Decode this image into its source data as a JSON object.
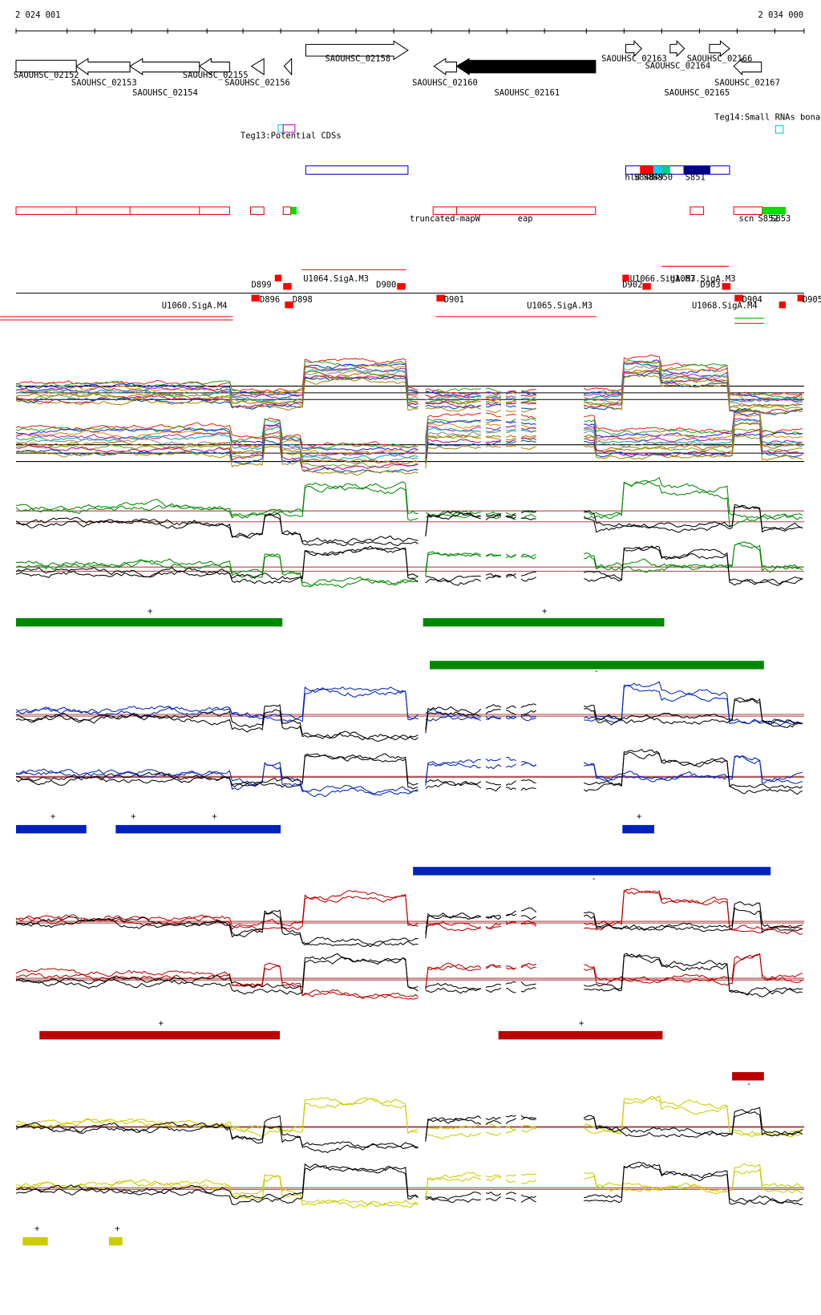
{
  "ruler": {
    "start": "2 024 001",
    "end": "2 034 000"
  },
  "genes": [
    "SAOUHSC_02152",
    "SAOUHSC_02153",
    "SAOUHSC_02154",
    "SAOUHSC_02155",
    "SAOUHSC_02156",
    "SAOUHSC_02158",
    "SAOUHSC_02160",
    "SAOUHSC_02161",
    "SAOUHSC_02163",
    "SAOUHSC_02164",
    "SAOUHSC_02166",
    "SAOUHSC_02165",
    "SAOUHSC_02167"
  ],
  "tracks": [
    "Teg13:Potential CDSs",
    "Teg14:Small RNAs bona"
  ],
  "features": [
    "hld",
    "S848",
    "S849",
    "S850",
    "S851",
    "truncated-mapW",
    "eap",
    "scn",
    "S852",
    "S853"
  ],
  "promoters": [
    "D899",
    "U1064.SigA.M3",
    "D900",
    "D896",
    "D898",
    "U1060.SigA.M4",
    "D901",
    "U1065.SigA.M3",
    "U1066.SigA.M3",
    "U1067.SigA.M3",
    "D902",
    "D903",
    "D904",
    "U1068.SigA.M4",
    "D905"
  ],
  "strands": [
    "+",
    "+",
    "-",
    "+",
    "+",
    "+",
    "+",
    "-",
    "+",
    "+",
    "-",
    "+",
    "+"
  ]
}
